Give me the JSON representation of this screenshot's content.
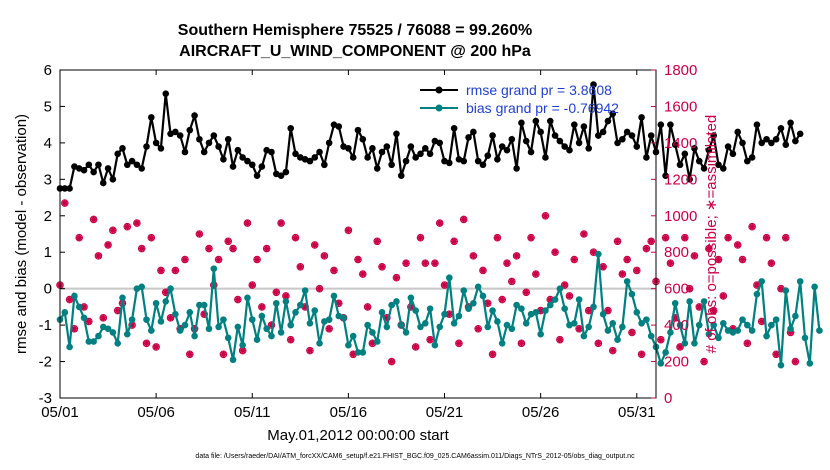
{
  "chart_data": {
    "type": "line",
    "title_line1": "Southern Hemisphere 75525 / 76088 = 99.260%",
    "title_line2": "AIRCRAFT_U_WIND_COMPONENT @ 200 hPa",
    "xlabel": "May.01,2012 00:00:00 start",
    "ylabel_left": "rmse and bias (model - observation)",
    "ylabel_right": "# of obs: o=possible; ∗=assimilated",
    "footer": "data file: /Users/raeder/DAI/ATM_forcXX/CAM6_setup/f.e21.FHIST_BGC.f09_025.CAM6assim.011/Diags_NTrS_2012-05/obs_diag_output.nc",
    "xlim": [
      1,
      32
    ],
    "ylim_left": [
      -3,
      6
    ],
    "ylim_right": [
      0,
      1800
    ],
    "x_ticks": [
      {
        "value": 1,
        "label": "05/01"
      },
      {
        "value": 6,
        "label": "05/06"
      },
      {
        "value": 11,
        "label": "05/11"
      },
      {
        "value": 16,
        "label": "05/16"
      },
      {
        "value": 21,
        "label": "05/21"
      },
      {
        "value": 26,
        "label": "05/26"
      },
      {
        "value": 31,
        "label": "05/31"
      }
    ],
    "y_ticks_left": [
      "-3",
      "-2",
      "-1",
      "0",
      "1",
      "2",
      "3",
      "4",
      "5",
      "6"
    ],
    "y_ticks_right": [
      "0",
      "200",
      "400",
      "600",
      "800",
      "1000",
      "1200",
      "1400",
      "1600",
      "1800"
    ],
    "legend": [
      "rmse grand pr = 3.8608",
      "bias grand pr = -0.76942"
    ],
    "legend_position": "top-right",
    "colors": {
      "rmse": "#000000",
      "bias": "#008080",
      "obs": "#cc0044",
      "right_axis": "#cc0044",
      "legend_text": "#1f3fd0",
      "zero_line": "#c8c8c8"
    },
    "start_day": 1,
    "step_days": 0.25,
    "series": [
      {
        "name": "rmse",
        "axis": "left",
        "values": [
          2.75,
          2.75,
          2.75,
          3.35,
          3.3,
          3.25,
          3.4,
          3.2,
          3.4,
          2.9,
          3.3,
          3.0,
          3.7,
          3.85,
          3.4,
          3.5,
          3.4,
          3.3,
          3.9,
          4.7,
          4.0,
          3.85,
          5.35,
          4.25,
          4.3,
          4.2,
          3.75,
          4.35,
          4.75,
          4.1,
          3.75,
          4.0,
          4.2,
          3.9,
          3.55,
          4.1,
          3.35,
          3.8,
          3.6,
          3.5,
          3.4,
          3.1,
          3.35,
          3.8,
          3.75,
          3.15,
          3.1,
          3.2,
          4.4,
          3.7,
          3.6,
          3.55,
          3.5,
          3.6,
          3.75,
          3.4,
          4.0,
          4.5,
          4.45,
          3.9,
          3.85,
          3.6,
          4.35,
          4.1,
          3.6,
          3.85,
          3.3,
          3.75,
          3.9,
          3.4,
          4.25,
          3.1,
          3.5,
          3.9,
          3.6,
          3.7,
          3.85,
          3.7,
          4.05,
          4.0,
          3.5,
          3.45,
          4.4,
          3.55,
          3.5,
          4.15,
          4.3,
          3.5,
          3.4,
          3.65,
          4.2,
          3.55,
          3.9,
          3.8,
          4.1,
          3.3,
          4.55,
          4.05,
          3.75,
          4.6,
          4.3,
          3.6,
          4.6,
          4.2,
          4.05,
          3.9,
          3.8,
          4.5,
          4.0,
          4.45,
          3.85,
          5.6,
          4.2,
          4.3,
          4.6,
          4.8,
          4.0,
          4.1,
          4.3,
          4.2,
          3.9,
          4.7,
          3.6,
          4.2,
          3.75,
          4.5,
          3.1,
          4.5,
          3.95,
          3.4,
          3.7,
          3.0,
          3.85,
          3.5,
          3.3,
          3.8,
          4.2,
          3.4,
          3.3,
          3.9,
          3.7,
          4.3,
          4.0,
          3.5,
          3.6,
          4.5,
          4.0,
          4.1,
          4.0,
          4.1,
          4.4,
          3.95,
          4.55,
          4.05,
          4.25
        ]
      },
      {
        "name": "bias",
        "axis": "left",
        "values": [
          -0.85,
          -0.65,
          -1.6,
          -0.2,
          -0.5,
          -0.8,
          -1.45,
          -1.45,
          -1.3,
          -1.05,
          -1.1,
          -1.2,
          -1.5,
          -0.25,
          -1.25,
          -0.85,
          0.0,
          0.05,
          -0.85,
          -1.15,
          -0.4,
          -0.9,
          -0.35,
          0.0,
          -0.7,
          -1.15,
          -1.0,
          -0.65,
          -1.3,
          -0.45,
          -0.45,
          -1.1,
          0.55,
          -1.05,
          -0.85,
          -1.35,
          -1.95,
          -1.05,
          -1.55,
          -0.25,
          -0.85,
          -1.4,
          -0.75,
          -1.1,
          -1.3,
          -0.4,
          -1.2,
          -0.35,
          -1.0,
          -0.65,
          -0.45,
          -0.05,
          -0.95,
          -0.6,
          -1.5,
          -0.9,
          -0.85,
          -0.2,
          -0.75,
          -0.8,
          -1.55,
          -1.3,
          -1.75,
          -1.75,
          -1.0,
          -1.2,
          -1.45,
          -0.65,
          -1.05,
          -0.45,
          -0.35,
          -1.0,
          -1.2,
          -0.25,
          -0.6,
          -1.05,
          -0.95,
          -0.55,
          -1.55,
          -1.05,
          -0.7,
          0.3,
          -0.95,
          -0.75,
          -0.05,
          -0.55,
          -0.4,
          0.05,
          -0.2,
          -1.05,
          -0.6,
          -0.9,
          -1.5,
          -1.0,
          -1.1,
          -0.45,
          -0.55,
          -0.95,
          -0.7,
          -0.65,
          -1.25,
          -0.6,
          -0.45,
          -0.3,
          0.0,
          -0.55,
          -1.0,
          -0.95,
          -0.3,
          -1.3,
          -1.05,
          -0.5,
          0.95,
          -0.7,
          -1.15,
          -0.95,
          -1.4,
          -1.05,
          0.2,
          -0.15,
          -0.65,
          -0.95,
          -0.85,
          -1.3,
          -1.6,
          -2.05,
          -1.75,
          -1.2,
          -0.4,
          -1.0,
          -1.5,
          -0.35,
          -1.5,
          -1.0,
          -0.35,
          -1.25,
          -1.0,
          -1.35,
          -0.95,
          -1.15,
          -1.2,
          -1.15,
          -0.85,
          -1.0,
          -1.15,
          -0.15,
          0.2,
          -1.3,
          -1.0,
          -0.85,
          -2.1,
          -0.05,
          -1.1,
          -0.75,
          0.2,
          -1.35,
          -2.05,
          0.05,
          -1.15
        ]
      },
      {
        "name": "possible",
        "axis": "right",
        "values": [
          620,
          1070,
          540,
          380,
          880,
          500,
          420,
          980,
          780,
          440,
          840,
          920,
          480,
          520,
          940,
          400,
          960,
          820,
          300,
          880,
          280,
          700,
          580,
          440,
          700,
          380,
          760,
          240,
          380,
          900,
          460,
          820,
          620,
          760,
          240,
          860,
          820,
          540,
          260,
          960,
          620,
          760,
          500,
          820,
          400,
          580,
          960,
          560,
          320,
          880,
          720,
          500,
          260,
          840,
          600,
          780,
          380,
          700,
          520,
          440,
          920,
          240,
          760,
          680,
          500,
          300,
          860,
          720,
          440,
          200,
          660,
          400,
          740,
          500,
          280,
          880,
          740,
          320,
          740,
          960,
          620,
          460,
          860,
          300,
          980,
          500,
          780,
          380,
          700,
          520,
          240,
          880,
          540,
          740,
          640,
          780,
          300,
          580,
          880,
          680,
          480,
          1000,
          540,
          800,
          320,
          620,
          560,
          760,
          380,
          900,
          480,
          800,
          300,
          720,
          480,
          260,
          860,
          680,
          760,
          360,
          700,
          240,
          820,
          860,
          640,
          320,
          880,
          740,
          440,
          280,
          880,
          600,
          780,
          500,
          200,
          820,
          480,
          760,
          560,
          880,
          380,
          840,
          760,
          300,
          940,
          620,
          420,
          880,
          740,
          240,
          600,
          880,
          360,
          200
        ]
      },
      {
        "name": "assimilated",
        "axis": "right",
        "values": [
          620,
          1070,
          540,
          380,
          880,
          500,
          420,
          980,
          780,
          440,
          840,
          920,
          480,
          520,
          940,
          400,
          960,
          820,
          300,
          880,
          280,
          700,
          580,
          440,
          700,
          380,
          760,
          240,
          380,
          900,
          460,
          820,
          620,
          760,
          240,
          860,
          820,
          540,
          260,
          960,
          620,
          760,
          500,
          820,
          400,
          580,
          960,
          560,
          320,
          880,
          720,
          500,
          260,
          840,
          600,
          780,
          380,
          700,
          520,
          440,
          920,
          240,
          760,
          680,
          500,
          300,
          860,
          720,
          440,
          200,
          660,
          400,
          740,
          500,
          280,
          880,
          740,
          320,
          740,
          960,
          620,
          460,
          860,
          300,
          980,
          500,
          780,
          380,
          700,
          520,
          240,
          880,
          540,
          740,
          640,
          780,
          300,
          580,
          880,
          680,
          480,
          1000,
          540,
          800,
          320,
          620,
          560,
          760,
          380,
          900,
          480,
          800,
          300,
          720,
          480,
          260,
          860,
          680,
          760,
          360,
          700,
          240,
          820,
          860,
          640,
          320,
          880,
          740,
          440,
          280,
          880,
          600,
          780,
          500,
          200,
          820,
          480,
          760,
          560,
          880,
          380,
          840,
          760,
          300,
          940,
          620,
          420,
          880,
          740,
          240,
          600,
          880,
          360,
          200
        ]
      }
    ]
  }
}
